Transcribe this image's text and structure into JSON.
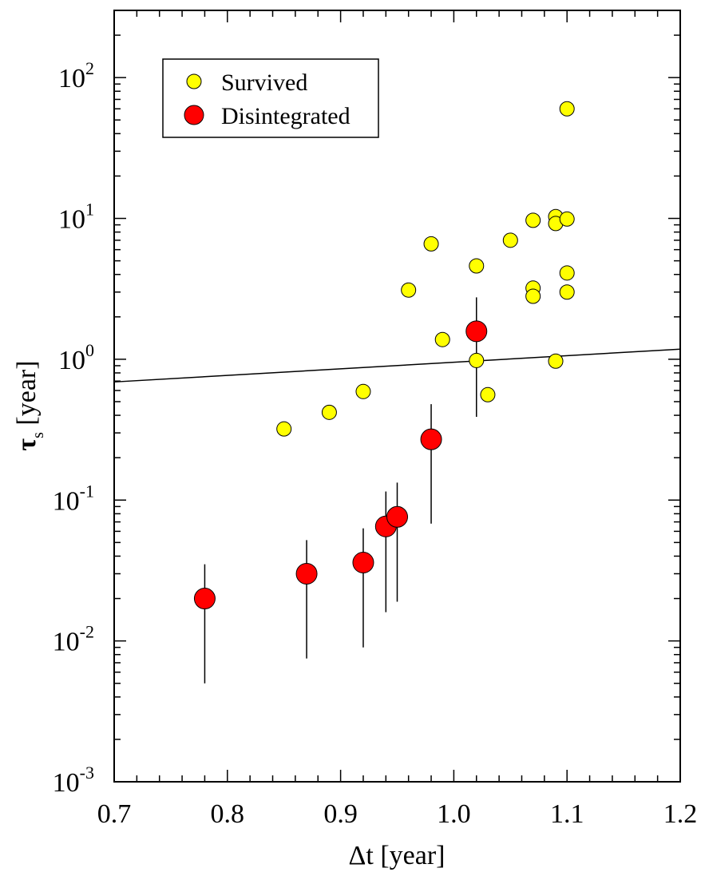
{
  "chart_data": {
    "type": "scatter",
    "xlabel": "Δt [year]",
    "ylabel": {
      "symbol": "τ",
      "subscript": "s",
      "unit": " [year]"
    },
    "xlim": [
      0.7,
      1.2
    ],
    "ylim": [
      0.001,
      300
    ],
    "yscale": "log",
    "grid": false,
    "legend_placement": "top-left",
    "x_ticks": [
      "0.7",
      "0.8",
      "0.9",
      "1.0",
      "1.1",
      "1.2"
    ],
    "y_ticks": [
      {
        "value": 0.001,
        "base": "10",
        "exp": "-3"
      },
      {
        "value": 0.01,
        "base": "10",
        "exp": "-2"
      },
      {
        "value": 0.1,
        "base": "10",
        "exp": "-1"
      },
      {
        "value": 1,
        "base": "10",
        "exp": "0"
      },
      {
        "value": 10,
        "base": "10",
        "exp": "1"
      },
      {
        "value": 100,
        "base": "10",
        "exp": "2"
      }
    ],
    "series": [
      {
        "name": "Survived",
        "color": "#ffff00",
        "points": [
          [
            0.85,
            0.32
          ],
          [
            0.89,
            0.42
          ],
          [
            0.92,
            0.59
          ],
          [
            0.96,
            3.1
          ],
          [
            0.98,
            6.6
          ],
          [
            0.99,
            1.38
          ],
          [
            1.02,
            4.6
          ],
          [
            1.02,
            0.98
          ],
          [
            1.03,
            0.56
          ],
          [
            1.05,
            7.0
          ],
          [
            1.07,
            9.7
          ],
          [
            1.07,
            3.2
          ],
          [
            1.07,
            2.8
          ],
          [
            1.09,
            10.3
          ],
          [
            1.09,
            9.2
          ],
          [
            1.09,
            0.97
          ],
          [
            1.1,
            60
          ],
          [
            1.1,
            9.9
          ],
          [
            1.1,
            4.1
          ],
          [
            1.1,
            3.0
          ]
        ]
      },
      {
        "name": "Disintegrated",
        "color": "#ff0000",
        "points": [
          {
            "x": 0.78,
            "y": 0.02,
            "lo": 0.005,
            "hi": 0.035
          },
          {
            "x": 0.87,
            "y": 0.03,
            "lo": 0.0075,
            "hi": 0.052
          },
          {
            "x": 0.92,
            "y": 0.036,
            "lo": 0.009,
            "hi": 0.063
          },
          {
            "x": 0.94,
            "y": 0.065,
            "lo": 0.016,
            "hi": 0.115
          },
          {
            "x": 0.95,
            "y": 0.076,
            "lo": 0.019,
            "hi": 0.133
          },
          {
            "x": 0.98,
            "y": 0.27,
            "lo": 0.068,
            "hi": 0.48
          },
          {
            "x": 1.02,
            "y": 1.58,
            "lo": 0.39,
            "hi": 2.75
          }
        ]
      }
    ],
    "reference_line": {
      "x": [
        0.7,
        1.2
      ],
      "y": [
        0.69,
        1.18
      ]
    }
  }
}
